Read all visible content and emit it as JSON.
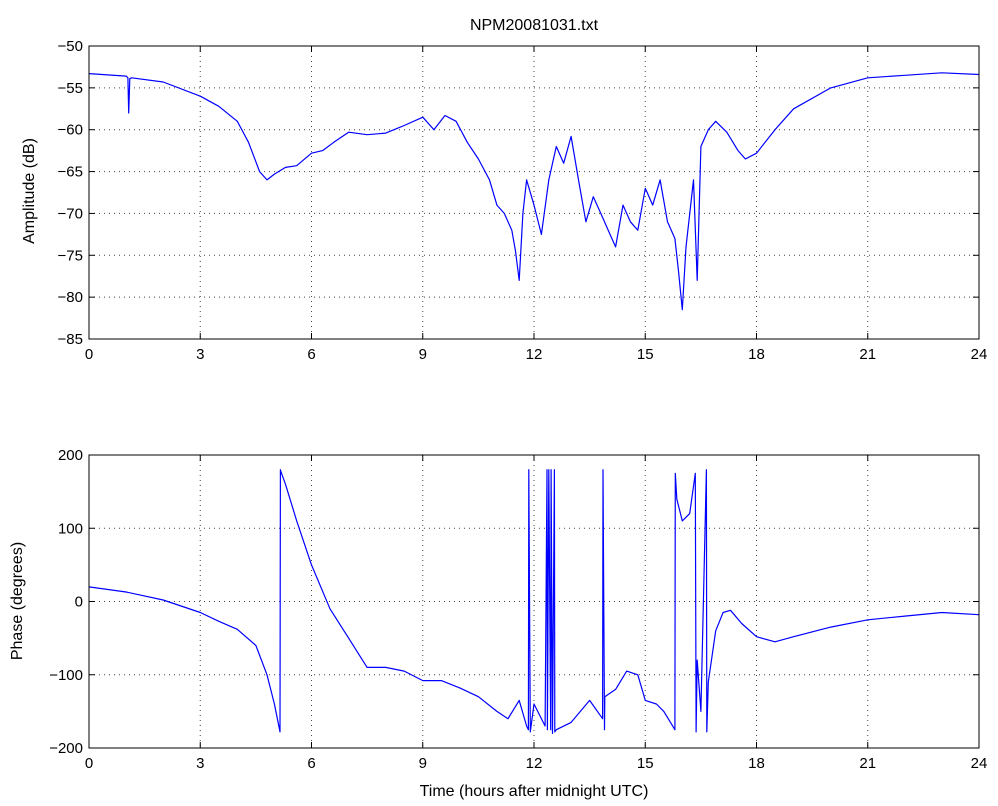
{
  "chart_data": [
    {
      "type": "line",
      "title": "NPM20081031.txt",
      "xlabel": "",
      "ylabel": "Amplitude (dB)",
      "xlim": [
        0,
        24
      ],
      "ylim": [
        -85,
        -50
      ],
      "xticks": [
        0,
        3,
        6,
        9,
        12,
        15,
        18,
        21,
        24
      ],
      "yticks": [
        -85,
        -80,
        -75,
        -70,
        -65,
        -60,
        -55,
        -50
      ],
      "grid": true,
      "color": "#0000ff",
      "series": [
        {
          "x": [
            0,
            1,
            1.05,
            1.07,
            1.1,
            1.15,
            2,
            3,
            3.5,
            4,
            4.3,
            4.6,
            4.8,
            5.0,
            5.3,
            5.6,
            6.0,
            6.3,
            6.6,
            7.0,
            7.5,
            8.0,
            8.5,
            9.0,
            9.3,
            9.6,
            9.9,
            10.2,
            10.5,
            10.8,
            11.0,
            11.2,
            11.4,
            11.5,
            11.6,
            11.7,
            11.8,
            12.0,
            12.2,
            12.4,
            12.6,
            12.8,
            13.0,
            13.2,
            13.4,
            13.6,
            13.8,
            14.0,
            14.2,
            14.4,
            14.6,
            14.8,
            15.0,
            15.2,
            15.4,
            15.6,
            15.8,
            15.9,
            16.0,
            16.1,
            16.3,
            16.4,
            16.5,
            16.7,
            16.9,
            17.2,
            17.5,
            17.7,
            18.0,
            18.5,
            19.0,
            20.0,
            21.0,
            22.0,
            23.0,
            24.0
          ],
          "y": [
            -53.3,
            -53.6,
            -53.8,
            -58,
            -53.9,
            -53.8,
            -54.3,
            -56,
            -57.2,
            -59,
            -61.5,
            -65,
            -66,
            -65.3,
            -64.5,
            -64.3,
            -62.8,
            -62.5,
            -61.5,
            -60.3,
            -60.6,
            -60.4,
            -59.5,
            -58.5,
            -60,
            -58.3,
            -59,
            -61.5,
            -63.5,
            -66,
            -69,
            -70,
            -72,
            -74.5,
            -78,
            -70,
            -66,
            -69,
            -72.5,
            -66,
            -62,
            -64,
            -60.8,
            -66,
            -71,
            -68,
            -70,
            -72,
            -74,
            -69,
            -71,
            -72,
            -67,
            -69,
            -66,
            -71,
            -73,
            -77,
            -81.5,
            -74,
            -66,
            -78,
            -62,
            -60,
            -59,
            -60.3,
            -62.5,
            -63.5,
            -62.8,
            -60,
            -57.5,
            -55,
            -53.8,
            -53.5,
            -53.2,
            -53.4
          ]
        }
      ]
    },
    {
      "type": "line",
      "title": "",
      "xlabel": "Time (hours after midnight UTC)",
      "ylabel": "Phase (degrees)",
      "xlim": [
        0,
        24
      ],
      "ylim": [
        -200,
        200
      ],
      "xticks": [
        0,
        3,
        6,
        9,
        12,
        15,
        18,
        21,
        24
      ],
      "yticks": [
        -200,
        -100,
        0,
        100,
        200
      ],
      "grid": true,
      "color": "#0000ff",
      "series": [
        {
          "x": [
            0,
            1,
            2,
            3,
            3.5,
            4,
            4.5,
            4.8,
            5.0,
            5.15,
            5.16,
            5.17,
            5.3,
            5.6,
            6.0,
            6.5,
            7.0,
            7.5,
            8.0,
            8.5,
            9.0,
            9.5,
            10.0,
            10.5,
            11.0,
            11.3,
            11.6,
            11.8,
            11.85,
            11.86,
            11.9,
            12.0,
            12.3,
            12.35,
            12.36,
            12.4,
            12.45,
            12.46,
            12.5,
            12.55,
            12.56,
            12.6,
            13.0,
            13.5,
            13.85,
            13.86,
            13.9,
            13.91,
            14.2,
            14.5,
            14.8,
            15.0,
            15.3,
            15.5,
            15.8,
            15.81,
            15.85,
            16.0,
            16.2,
            16.35,
            16.37,
            16.4,
            16.5,
            16.65,
            16.66,
            16.7,
            16.9,
            17.1,
            17.3,
            17.6,
            18.0,
            18.5,
            19.0,
            20.0,
            21.0,
            22.0,
            23.0,
            24.0
          ],
          "y": [
            20,
            13,
            2,
            -15,
            -27,
            -38,
            -60,
            -100,
            -140,
            -178,
            180,
            178,
            160,
            110,
            50,
            -10,
            -50,
            -90,
            -90,
            -95,
            -108,
            -108,
            -118,
            -130,
            -150,
            -160,
            -135,
            -170,
            -175,
            180,
            -178,
            -140,
            -170,
            180,
            -175,
            180,
            -175,
            180,
            -180,
            180,
            -178,
            -175,
            -165,
            -135,
            -160,
            180,
            -175,
            -130,
            -120,
            -95,
            -100,
            -135,
            -140,
            -150,
            -175,
            175,
            140,
            110,
            120,
            175,
            -178,
            -80,
            -150,
            180,
            -178,
            -110,
            -40,
            -15,
            -12,
            -30,
            -48,
            -55,
            -48,
            -35,
            -25,
            -20,
            -15,
            -18
          ]
        }
      ]
    }
  ]
}
